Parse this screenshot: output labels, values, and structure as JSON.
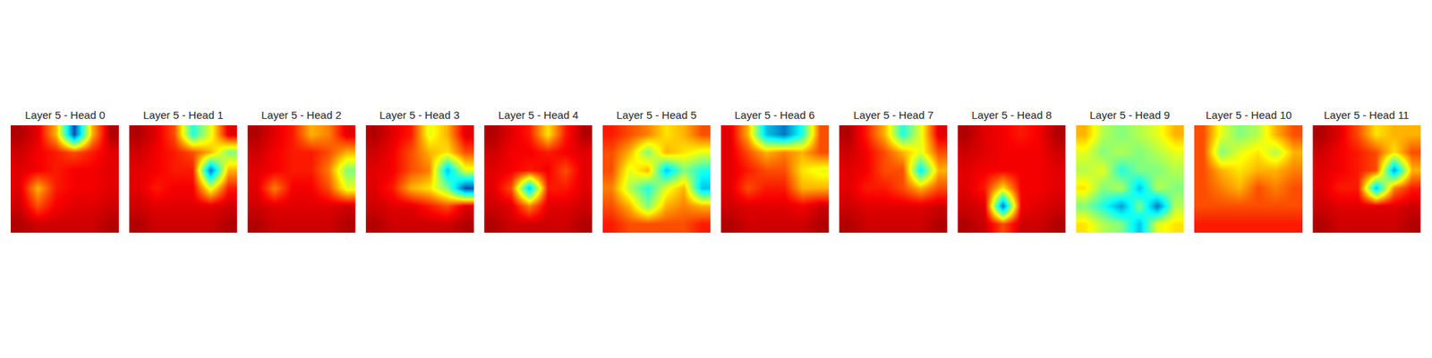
{
  "chart_data": {
    "type": "heatmap",
    "tick_labels": false,
    "zlim": [
      0,
      1
    ],
    "panels": [
      {
        "title": "Layer 5 - Head 0",
        "cells": [
          [
            0.05,
            0.1,
            0.3,
            0.85,
            0.3,
            0.05
          ],
          [
            0.08,
            0.12,
            0.15,
            0.2,
            0.15,
            0.1
          ],
          [
            0.1,
            0.12,
            0.15,
            0.12,
            0.12,
            0.1
          ],
          [
            0.1,
            0.3,
            0.15,
            0.12,
            0.12,
            0.1
          ],
          [
            0.08,
            0.2,
            0.12,
            0.1,
            0.1,
            0.08
          ],
          [
            0.05,
            0.08,
            0.08,
            0.08,
            0.08,
            0.05
          ]
        ]
      },
      {
        "title": "Layer 5 - Head 1",
        "cells": [
          [
            0.05,
            0.1,
            0.2,
            0.6,
            0.4,
            0.1
          ],
          [
            0.08,
            0.12,
            0.15,
            0.2,
            0.3,
            0.5
          ],
          [
            0.1,
            0.12,
            0.15,
            0.15,
            0.8,
            0.3
          ],
          [
            0.1,
            0.15,
            0.12,
            0.12,
            0.4,
            0.15
          ],
          [
            0.08,
            0.1,
            0.1,
            0.1,
            0.1,
            0.08
          ],
          [
            0.05,
            0.08,
            0.08,
            0.08,
            0.08,
            0.05
          ]
        ]
      },
      {
        "title": "Layer 5 - Head 2",
        "cells": [
          [
            0.05,
            0.1,
            0.15,
            0.3,
            0.25,
            0.1
          ],
          [
            0.08,
            0.12,
            0.15,
            0.15,
            0.2,
            0.3
          ],
          [
            0.1,
            0.12,
            0.15,
            0.15,
            0.25,
            0.5
          ],
          [
            0.1,
            0.25,
            0.12,
            0.12,
            0.2,
            0.4
          ],
          [
            0.08,
            0.1,
            0.1,
            0.1,
            0.1,
            0.08
          ],
          [
            0.05,
            0.08,
            0.08,
            0.08,
            0.08,
            0.05
          ]
        ]
      },
      {
        "title": "Layer 5 - Head 3",
        "cells": [
          [
            0.05,
            0.1,
            0.15,
            0.4,
            0.3,
            0.1
          ],
          [
            0.08,
            0.12,
            0.2,
            0.3,
            0.35,
            0.2
          ],
          [
            0.1,
            0.12,
            0.2,
            0.25,
            0.7,
            0.4
          ],
          [
            0.1,
            0.15,
            0.3,
            0.35,
            0.5,
            0.85
          ],
          [
            0.08,
            0.1,
            0.1,
            0.15,
            0.2,
            0.1
          ],
          [
            0.05,
            0.08,
            0.08,
            0.08,
            0.08,
            0.05
          ]
        ]
      },
      {
        "title": "Layer 5 - Head 4",
        "cells": [
          [
            0.05,
            0.1,
            0.15,
            0.35,
            0.15,
            0.05
          ],
          [
            0.08,
            0.12,
            0.12,
            0.15,
            0.12,
            0.1
          ],
          [
            0.1,
            0.12,
            0.15,
            0.12,
            0.2,
            0.1
          ],
          [
            0.1,
            0.2,
            0.7,
            0.15,
            0.15,
            0.1
          ],
          [
            0.08,
            0.1,
            0.25,
            0.1,
            0.1,
            0.08
          ],
          [
            0.05,
            0.08,
            0.08,
            0.08,
            0.08,
            0.05
          ]
        ]
      },
      {
        "title": "Layer 5 - Head 5",
        "cells": [
          [
            0.15,
            0.2,
            0.25,
            0.35,
            0.3,
            0.2
          ],
          [
            0.2,
            0.3,
            0.5,
            0.3,
            0.35,
            0.4
          ],
          [
            0.2,
            0.4,
            0.3,
            0.7,
            0.5,
            0.6
          ],
          [
            0.25,
            0.45,
            0.6,
            0.4,
            0.3,
            0.7
          ],
          [
            0.2,
            0.3,
            0.5,
            0.3,
            0.25,
            0.3
          ],
          [
            0.15,
            0.2,
            0.2,
            0.2,
            0.2,
            0.15
          ]
        ]
      },
      {
        "title": "Layer 5 - Head 6",
        "cells": [
          [
            0.1,
            0.3,
            0.7,
            0.8,
            0.6,
            0.2
          ],
          [
            0.1,
            0.2,
            0.3,
            0.25,
            0.3,
            0.2
          ],
          [
            0.1,
            0.15,
            0.2,
            0.2,
            0.35,
            0.4
          ],
          [
            0.1,
            0.2,
            0.15,
            0.15,
            0.3,
            0.3
          ],
          [
            0.08,
            0.1,
            0.1,
            0.1,
            0.12,
            0.08
          ],
          [
            0.05,
            0.08,
            0.08,
            0.08,
            0.08,
            0.05
          ]
        ]
      },
      {
        "title": "Layer 5 - Head 7",
        "cells": [
          [
            0.05,
            0.15,
            0.3,
            0.6,
            0.4,
            0.1
          ],
          [
            0.08,
            0.12,
            0.2,
            0.3,
            0.4,
            0.2
          ],
          [
            0.1,
            0.12,
            0.2,
            0.2,
            0.65,
            0.3
          ],
          [
            0.1,
            0.15,
            0.15,
            0.2,
            0.3,
            0.2
          ],
          [
            0.08,
            0.1,
            0.1,
            0.1,
            0.1,
            0.08
          ],
          [
            0.05,
            0.08,
            0.08,
            0.08,
            0.08,
            0.05
          ]
        ]
      },
      {
        "title": "Layer 5 - Head 8",
        "cells": [
          [
            0.05,
            0.1,
            0.12,
            0.15,
            0.12,
            0.05
          ],
          [
            0.08,
            0.1,
            0.12,
            0.12,
            0.12,
            0.08
          ],
          [
            0.1,
            0.12,
            0.12,
            0.12,
            0.12,
            0.1
          ],
          [
            0.1,
            0.15,
            0.35,
            0.12,
            0.12,
            0.1
          ],
          [
            0.08,
            0.1,
            0.8,
            0.12,
            0.1,
            0.08
          ],
          [
            0.05,
            0.08,
            0.2,
            0.08,
            0.08,
            0.05
          ]
        ]
      },
      {
        "title": "Layer 5 - Head 9",
        "cells": [
          [
            0.3,
            0.45,
            0.5,
            0.45,
            0.4,
            0.3
          ],
          [
            0.4,
            0.5,
            0.45,
            0.5,
            0.45,
            0.4
          ],
          [
            0.45,
            0.4,
            0.6,
            0.5,
            0.5,
            0.45
          ],
          [
            0.35,
            0.5,
            0.45,
            0.7,
            0.45,
            0.5
          ],
          [
            0.5,
            0.6,
            0.75,
            0.5,
            0.8,
            0.45
          ],
          [
            0.35,
            0.45,
            0.5,
            0.7,
            0.4,
            0.35
          ]
        ]
      },
      {
        "title": "Layer 5 - Head 10",
        "cells": [
          [
            0.2,
            0.4,
            0.5,
            0.45,
            0.3,
            0.2
          ],
          [
            0.2,
            0.5,
            0.4,
            0.35,
            0.45,
            0.3
          ],
          [
            0.2,
            0.3,
            0.35,
            0.3,
            0.3,
            0.25
          ],
          [
            0.2,
            0.25,
            0.3,
            0.2,
            0.25,
            0.2
          ],
          [
            0.2,
            0.2,
            0.2,
            0.2,
            0.2,
            0.2
          ],
          [
            0.15,
            0.15,
            0.15,
            0.15,
            0.15,
            0.15
          ]
        ]
      },
      {
        "title": "Layer 5 - Head 11",
        "cells": [
          [
            0.05,
            0.1,
            0.2,
            0.35,
            0.3,
            0.3
          ],
          [
            0.08,
            0.12,
            0.15,
            0.2,
            0.35,
            0.2
          ],
          [
            0.1,
            0.12,
            0.15,
            0.2,
            0.75,
            0.3
          ],
          [
            0.1,
            0.15,
            0.15,
            0.7,
            0.25,
            0.15
          ],
          [
            0.08,
            0.1,
            0.1,
            0.1,
            0.1,
            0.08
          ],
          [
            0.05,
            0.08,
            0.08,
            0.08,
            0.08,
            0.05
          ]
        ]
      }
    ]
  }
}
